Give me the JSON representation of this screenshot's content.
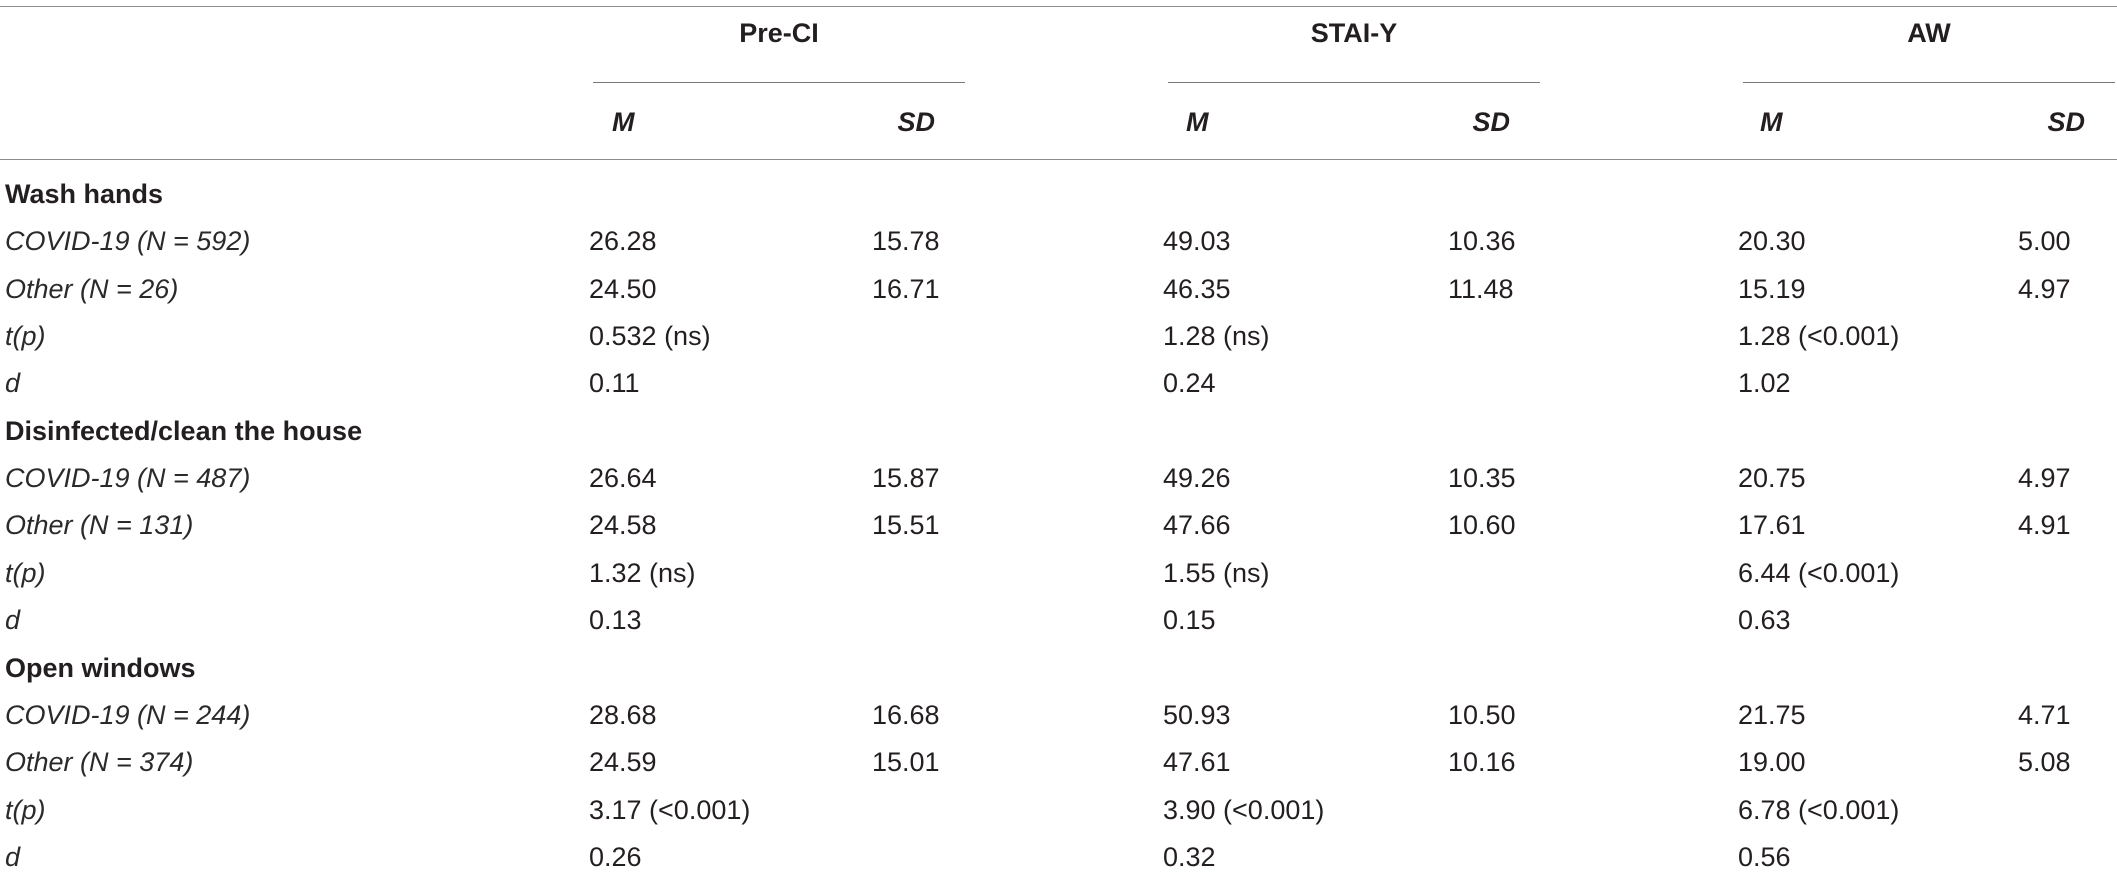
{
  "header": {
    "groups": [
      "Pre-CI",
      "STAI-Y",
      "AW"
    ],
    "sub_labels": [
      "M",
      "SD",
      "M",
      "SD",
      "M",
      "SD"
    ]
  },
  "sections": [
    {
      "title": "Wash hands",
      "rows": [
        {
          "label": "COVID-19 (N = 592)",
          "values": [
            "26.28",
            "15.78",
            "49.03",
            "10.36",
            "20.30",
            "5.00"
          ]
        },
        {
          "label": "Other (N = 26)",
          "values": [
            "24.50",
            "16.71",
            "46.35",
            "11.48",
            "15.19",
            "4.97"
          ]
        },
        {
          "label": "t(p)",
          "values": [
            "0.532 (ns)",
            "",
            "1.28 (ns)",
            "",
            "1.28 (<0.001)",
            ""
          ]
        },
        {
          "label": "d",
          "values": [
            "0.11",
            "",
            "0.24",
            "",
            "1.02",
            ""
          ]
        }
      ]
    },
    {
      "title": "Disinfected/clean the house",
      "rows": [
        {
          "label": "COVID-19 (N = 487)",
          "values": [
            "26.64",
            "15.87",
            "49.26",
            "10.35",
            "20.75",
            "4.97"
          ]
        },
        {
          "label": "Other (N = 131)",
          "values": [
            "24.58",
            "15.51",
            "47.66",
            "10.60",
            "17.61",
            "4.91"
          ]
        },
        {
          "label": "t(p)",
          "values": [
            "1.32 (ns)",
            "",
            "1.55 (ns)",
            "",
            "6.44 (<0.001)",
            ""
          ]
        },
        {
          "label": "d",
          "values": [
            "0.13",
            "",
            "0.15",
            "",
            "0.63",
            ""
          ]
        }
      ]
    },
    {
      "title": "Open windows",
      "rows": [
        {
          "label": "COVID-19 (N = 244)",
          "values": [
            "28.68",
            "16.68",
            "50.93",
            "10.50",
            "21.75",
            "4.71"
          ]
        },
        {
          "label": "Other (N = 374)",
          "values": [
            "24.59",
            "15.01",
            "47.61",
            "10.16",
            "19.00",
            "5.08"
          ]
        },
        {
          "label": "t(p)",
          "values": [
            "3.17 (<0.001)",
            "",
            "3.90 (<0.001)",
            "",
            "6.78 (<0.001)",
            ""
          ]
        },
        {
          "label": "d",
          "values": [
            "0.26",
            "",
            "0.32",
            "",
            "0.56",
            ""
          ]
        }
      ]
    }
  ]
}
